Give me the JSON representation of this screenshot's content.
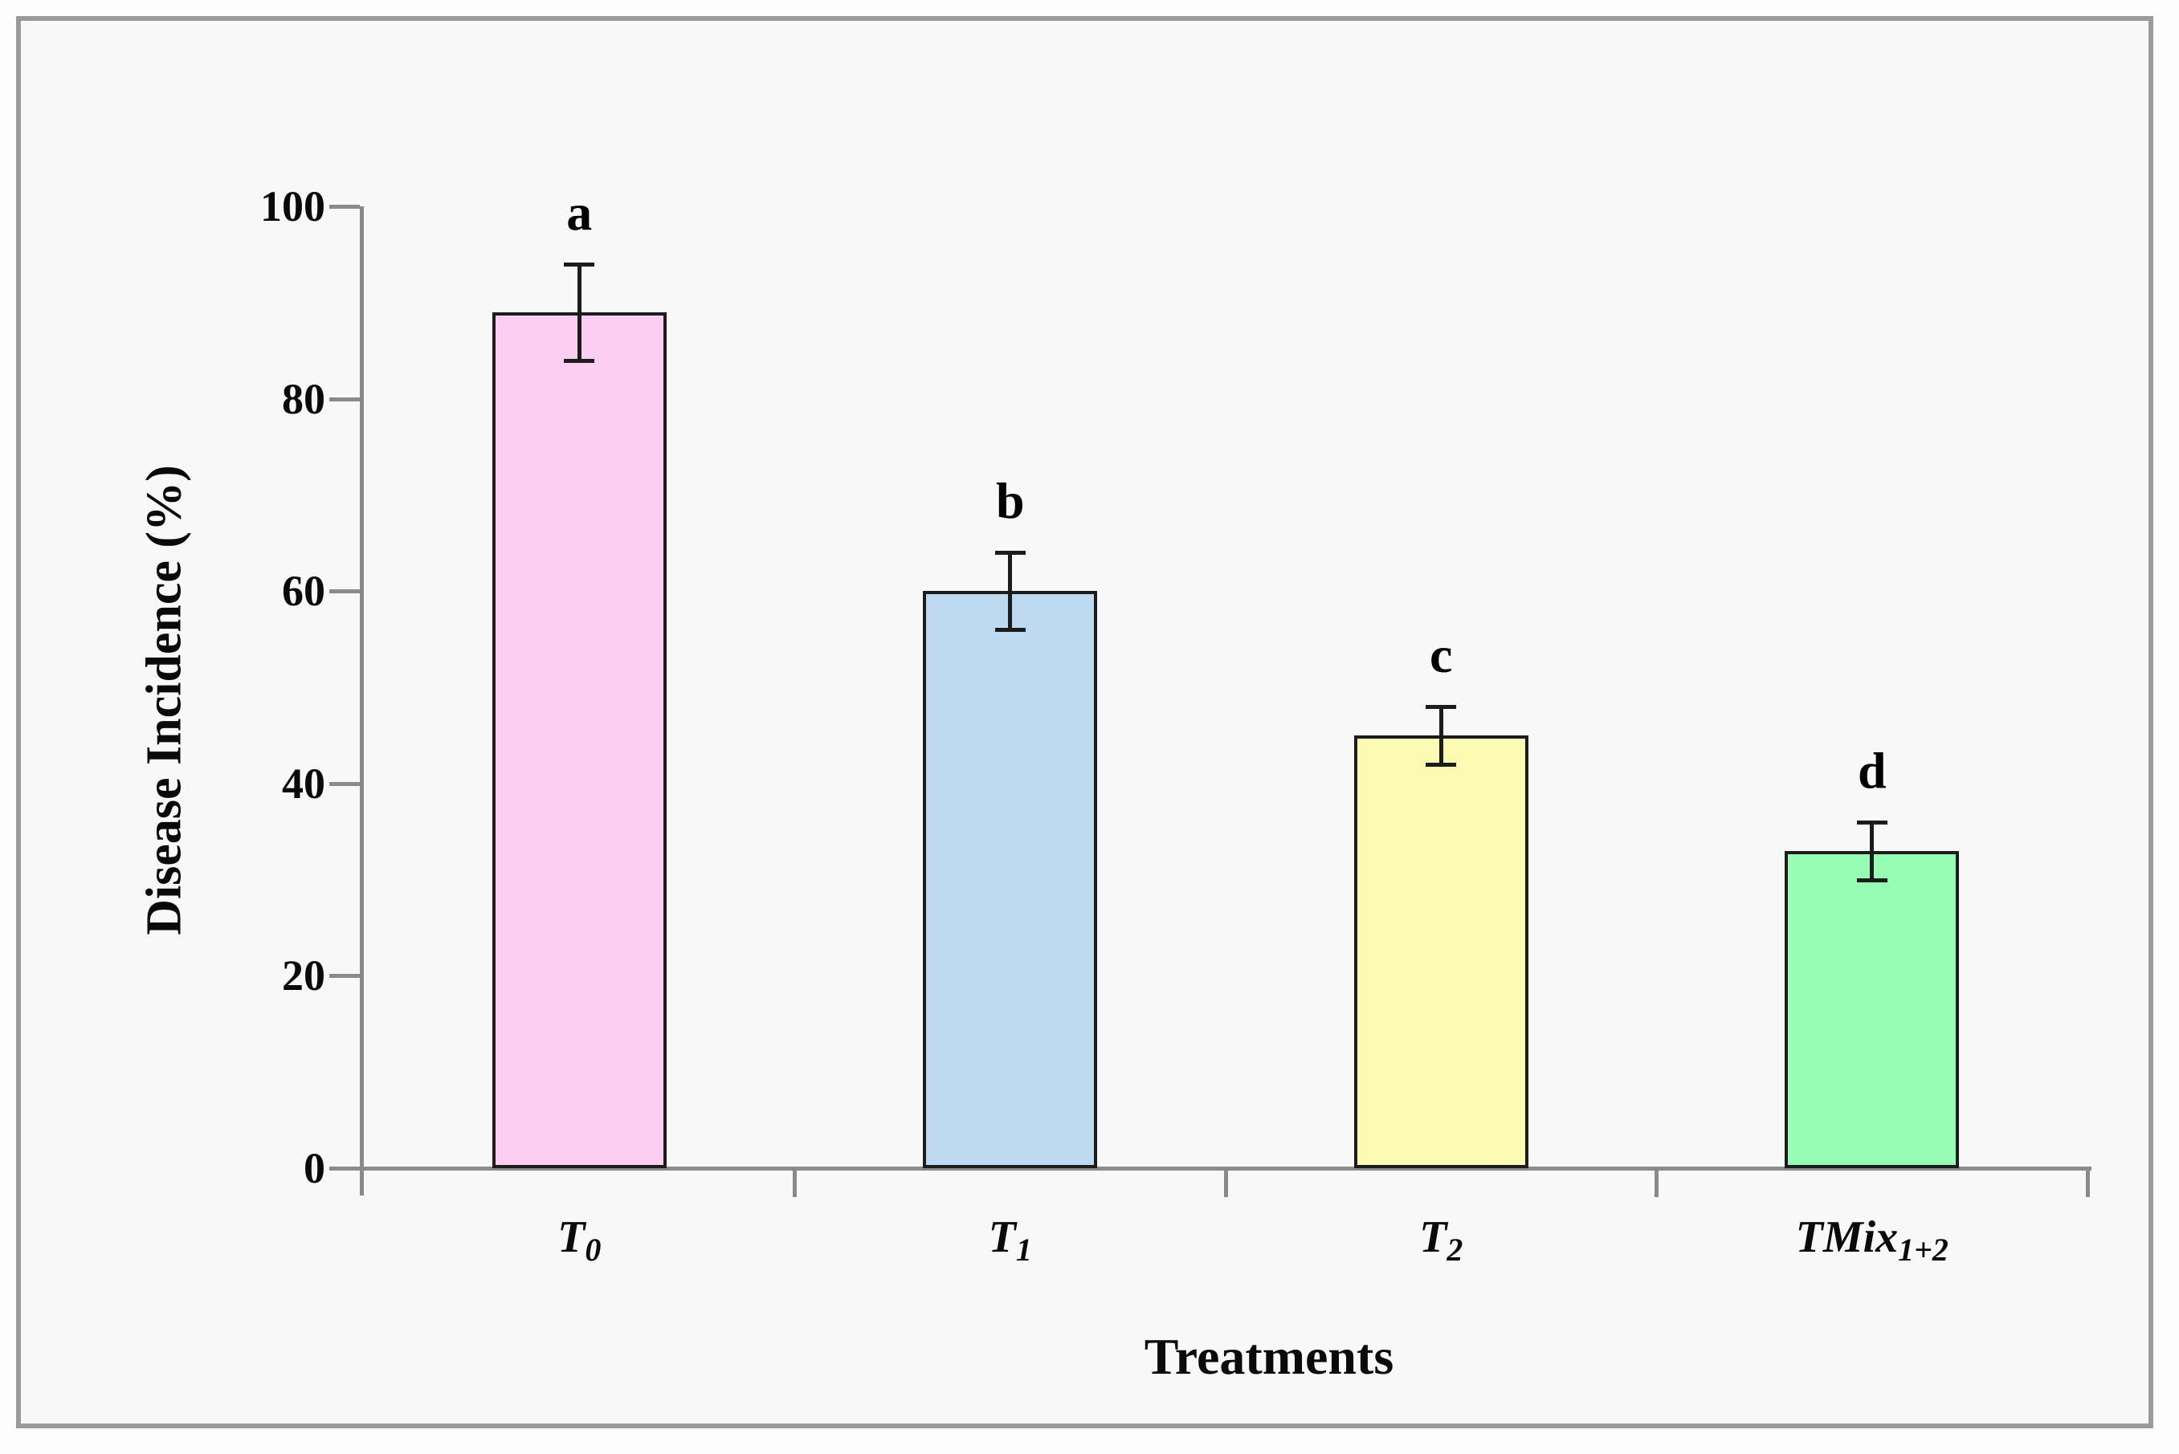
{
  "figure": {
    "outer_background": "#fdfdfd",
    "plot_background": "#f8f8f8",
    "frame_color": "#9b9b9b"
  },
  "chart_data": {
    "type": "bar",
    "title": "",
    "xlabel": "Treatments",
    "ylabel": "Disease Incidence (%)",
    "ylim": [
      0,
      100
    ],
    "yticks": [
      0,
      20,
      40,
      60,
      80,
      100
    ],
    "grid": false,
    "legend": null,
    "categories": [
      {
        "main": "T",
        "sub": "0"
      },
      {
        "main": "T",
        "sub": "1"
      },
      {
        "main": "T",
        "sub": "2"
      },
      {
        "main": "TMix",
        "sub": "1+2"
      }
    ],
    "values": [
      89,
      60,
      45,
      33
    ],
    "errors": [
      5,
      4,
      3,
      3
    ],
    "sig_letters": [
      "a",
      "b",
      "c",
      "d"
    ],
    "bar_colors": [
      "#fbcef2",
      "#bedaf0",
      "#fcfbb4",
      "#97fcb4"
    ],
    "bar_border_color": "#1c1c1c",
    "error_bar_color": "#1c1c1c",
    "axis_color": "#8a8a8a"
  }
}
